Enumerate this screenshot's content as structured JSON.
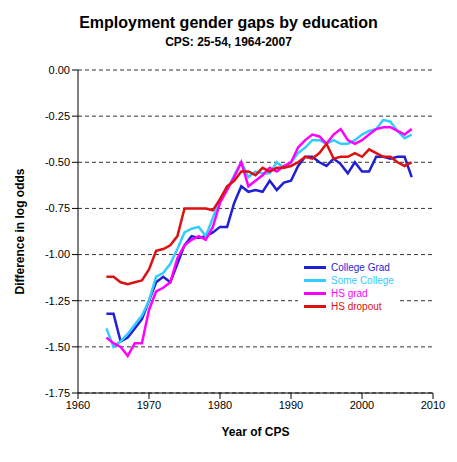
{
  "chart_data": {
    "type": "line",
    "title": "Employment gender gaps by education",
    "subtitle": "CPS: 25-54, 1964-2007",
    "x_label": "Year of CPS",
    "y_label": "Difference in log odds",
    "x": [
      1964,
      1965,
      1966,
      1967,
      1968,
      1969,
      1970,
      1971,
      1972,
      1973,
      1974,
      1975,
      1976,
      1977,
      1978,
      1979,
      1980,
      1981,
      1982,
      1983,
      1984,
      1985,
      1986,
      1987,
      1988,
      1989,
      1990,
      1991,
      1992,
      1993,
      1994,
      1995,
      1996,
      1997,
      1998,
      1999,
      2000,
      2001,
      2002,
      2003,
      2004,
      2005,
      2006,
      2007
    ],
    "series": [
      {
        "name": "College Grad",
        "color": "#1f1fd6",
        "values": [
          -1.32,
          -1.32,
          -1.47,
          -1.45,
          -1.4,
          -1.35,
          -1.25,
          -1.15,
          -1.12,
          -1.15,
          -1.05,
          -0.95,
          -0.9,
          -0.91,
          -0.9,
          -0.88,
          -0.85,
          -0.85,
          -0.72,
          -0.63,
          -0.66,
          -0.65,
          -0.66,
          -0.6,
          -0.65,
          -0.61,
          -0.6,
          -0.52,
          -0.47,
          -0.47,
          -0.5,
          -0.52,
          -0.48,
          -0.51,
          -0.56,
          -0.5,
          -0.55,
          -0.55,
          -0.47,
          -0.47,
          -0.48,
          -0.47,
          -0.47,
          -0.58
        ]
      },
      {
        "name": "Some College",
        "color": "#33ccff",
        "values": [
          -1.4,
          -1.5,
          -1.47,
          -1.43,
          -1.38,
          -1.33,
          -1.25,
          -1.12,
          -1.1,
          -1.05,
          -0.97,
          -0.88,
          -0.86,
          -0.85,
          -0.9,
          -0.8,
          -0.7,
          -0.65,
          -0.57,
          -0.5,
          -0.58,
          -0.55,
          -0.56,
          -0.56,
          -0.5,
          -0.53,
          -0.5,
          -0.45,
          -0.42,
          -0.38,
          -0.38,
          -0.4,
          -0.38,
          -0.4,
          -0.4,
          -0.38,
          -0.35,
          -0.33,
          -0.32,
          -0.27,
          -0.28,
          -0.33,
          -0.37,
          -0.35
        ]
      },
      {
        "name": "HS grad",
        "color": "#ff00ff",
        "values": [
          -1.45,
          -1.48,
          -1.5,
          -1.55,
          -1.48,
          -1.48,
          -1.3,
          -1.2,
          -1.18,
          -1.15,
          -1.02,
          -0.95,
          -0.92,
          -0.9,
          -0.92,
          -0.85,
          -0.72,
          -0.65,
          -0.58,
          -0.5,
          -0.63,
          -0.6,
          -0.57,
          -0.53,
          -0.55,
          -0.52,
          -0.5,
          -0.42,
          -0.38,
          -0.35,
          -0.36,
          -0.4,
          -0.35,
          -0.32,
          -0.38,
          -0.4,
          -0.38,
          -0.35,
          -0.32,
          -0.31,
          -0.31,
          -0.33,
          -0.35,
          -0.32
        ]
      },
      {
        "name": "HS dropout",
        "color": "#dd1111",
        "values": [
          -1.12,
          -1.12,
          -1.15,
          -1.16,
          -1.15,
          -1.14,
          -1.08,
          -0.98,
          -0.97,
          -0.95,
          -0.9,
          -0.75,
          -0.75,
          -0.75,
          -0.75,
          -0.76,
          -0.7,
          -0.63,
          -0.6,
          -0.55,
          -0.55,
          -0.57,
          -0.53,
          -0.55,
          -0.53,
          -0.53,
          -0.52,
          -0.5,
          -0.47,
          -0.48,
          -0.45,
          -0.4,
          -0.48,
          -0.47,
          -0.47,
          -0.45,
          -0.47,
          -0.43,
          -0.45,
          -0.47,
          -0.47,
          -0.5,
          -0.52,
          -0.5
        ]
      }
    ],
    "xlim": [
      1960,
      2010
    ],
    "xticks": [
      1960,
      1970,
      1980,
      1990,
      2000,
      2010
    ],
    "ylim": [
      -1.75,
      0
    ],
    "yticks": [
      {
        "value": -1.75,
        "label": "-1.75"
      },
      {
        "value": -1.5,
        "label": "-1.50"
      },
      {
        "value": -1.25,
        "label": "-1.25"
      },
      {
        "value": -1,
        "label": "-1.00"
      },
      {
        "value": -0.75,
        "label": "-0.75"
      },
      {
        "value": -0.5,
        "label": "-0.50"
      },
      {
        "value": -0.25,
        "label": "-0.25"
      },
      {
        "value": 0,
        "label": "0.00"
      }
    ],
    "grid": true,
    "legend": "right"
  }
}
